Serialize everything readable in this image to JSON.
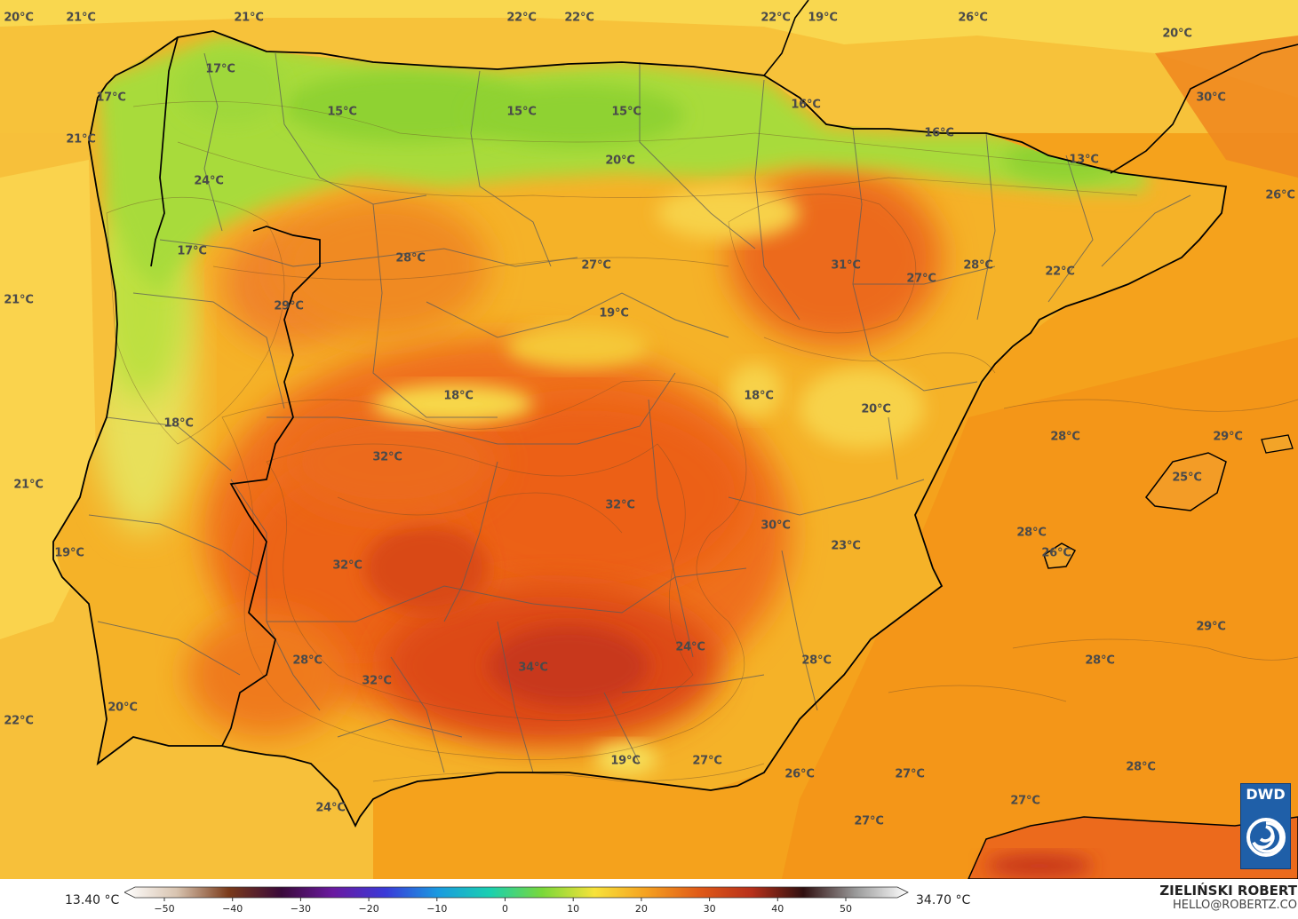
{
  "map": {
    "kind": "temperature forecast",
    "colors": {
      "sea_warm": "#f4a019",
      "sea_cool": "#f7c234",
      "land_hot": "#ef6a1a",
      "land_very_hot": "#d9451a",
      "land_mild": "#f5b82a",
      "land_cool": "#bde33a",
      "land_cold": "#8fd43a",
      "coastline": "#000000",
      "borders": "#555555"
    },
    "labels": [
      {
        "id": "t01",
        "text": "20°C"
      },
      {
        "id": "t02",
        "text": "21°C"
      },
      {
        "id": "t03",
        "text": "21°C"
      },
      {
        "id": "t04",
        "text": "22°C"
      },
      {
        "id": "t05",
        "text": "22°C"
      },
      {
        "id": "t06",
        "text": "22°C"
      },
      {
        "id": "t07",
        "text": "19°C"
      },
      {
        "id": "t08",
        "text": "26°C"
      },
      {
        "id": "t09",
        "text": "20°C"
      },
      {
        "id": "t10",
        "text": "17°C"
      },
      {
        "id": "t11",
        "text": "17°C"
      },
      {
        "id": "t12",
        "text": "15°C"
      },
      {
        "id": "t13",
        "text": "15°C"
      },
      {
        "id": "t14",
        "text": "15°C"
      },
      {
        "id": "t15",
        "text": "16°C"
      },
      {
        "id": "t16",
        "text": "30°C"
      },
      {
        "id": "t17",
        "text": "21°C"
      },
      {
        "id": "t18",
        "text": "16°C"
      },
      {
        "id": "t19",
        "text": "20°C"
      },
      {
        "id": "t20",
        "text": "13°C"
      },
      {
        "id": "t21",
        "text": "24°C"
      },
      {
        "id": "t22",
        "text": "26°C"
      },
      {
        "id": "t23",
        "text": "17°C"
      },
      {
        "id": "t24",
        "text": "28°C"
      },
      {
        "id": "t25",
        "text": "27°C"
      },
      {
        "id": "t26",
        "text": "31°C"
      },
      {
        "id": "t27",
        "text": "28°C"
      },
      {
        "id": "t28",
        "text": "27°C"
      },
      {
        "id": "t29",
        "text": "22°C"
      },
      {
        "id": "t30",
        "text": "21°C"
      },
      {
        "id": "t31",
        "text": "29°C"
      },
      {
        "id": "t32",
        "text": "19°C"
      },
      {
        "id": "t33",
        "text": "18°C"
      },
      {
        "id": "t34",
        "text": "18°C"
      },
      {
        "id": "t35",
        "text": "20°C"
      },
      {
        "id": "t36",
        "text": "18°C"
      },
      {
        "id": "t37",
        "text": "28°C"
      },
      {
        "id": "t38",
        "text": "29°C"
      },
      {
        "id": "t39",
        "text": "32°C"
      },
      {
        "id": "t40",
        "text": "25°C"
      },
      {
        "id": "t41",
        "text": "21°C"
      },
      {
        "id": "t42",
        "text": "32°C"
      },
      {
        "id": "t43",
        "text": "30°C"
      },
      {
        "id": "t44",
        "text": "28°C"
      },
      {
        "id": "t45",
        "text": "23°C"
      },
      {
        "id": "t46",
        "text": "26°C"
      },
      {
        "id": "t47",
        "text": "19°C"
      },
      {
        "id": "t48",
        "text": "32°C"
      },
      {
        "id": "t49",
        "text": "29°C"
      },
      {
        "id": "t50",
        "text": "28°C"
      },
      {
        "id": "t51",
        "text": "24°C"
      },
      {
        "id": "t52",
        "text": "28°C"
      },
      {
        "id": "t53",
        "text": "28°C"
      },
      {
        "id": "t54",
        "text": "32°C"
      },
      {
        "id": "t55",
        "text": "34°C"
      },
      {
        "id": "t56",
        "text": "20°C"
      },
      {
        "id": "t57",
        "text": "22°C"
      },
      {
        "id": "t58",
        "text": "19°C"
      },
      {
        "id": "t59",
        "text": "27°C"
      },
      {
        "id": "t60",
        "text": "26°C"
      },
      {
        "id": "t61",
        "text": "27°C"
      },
      {
        "id": "t62",
        "text": "28°C"
      },
      {
        "id": "t63",
        "text": "24°C"
      },
      {
        "id": "t64",
        "text": "27°C"
      },
      {
        "id": "t65",
        "text": "27°C"
      }
    ]
  },
  "legend": {
    "min_label": "13.40 °C",
    "max_label": "34.70 °C",
    "ticks": [
      "−50",
      "−40",
      "−30",
      "−20",
      "−10",
      "0",
      "10",
      "20",
      "30",
      "40",
      "50"
    ],
    "stops": [
      "#ffffff",
      "#d8c4b0",
      "#7a3a1a",
      "#3a0a3a",
      "#6a1aa0",
      "#3a3ad8",
      "#1a9ae0",
      "#1ad0b0",
      "#7ad83a",
      "#f7e23a",
      "#f5a020",
      "#e05a18",
      "#b8301a",
      "#301010",
      "#9a9a9a",
      "#ffffff"
    ]
  },
  "credit": {
    "name": "ZIELIŃSKI ROBERT",
    "email": "HELLO@ROBERTZ.CO"
  },
  "logo": {
    "text": "DWD"
  }
}
